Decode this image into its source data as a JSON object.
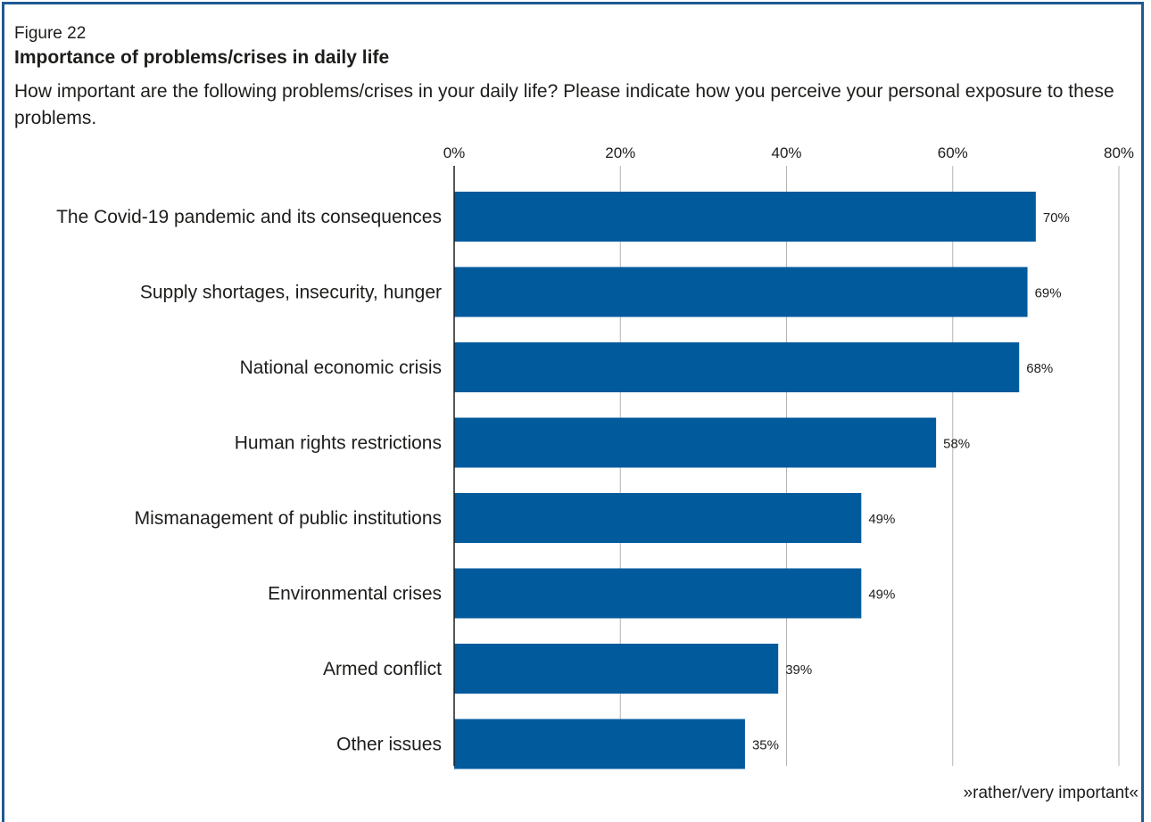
{
  "figure_label": "Figure 22",
  "footnote": "»rather/very important«",
  "chart_data": {
    "type": "bar",
    "orientation": "horizontal",
    "title": "Importance of problems/crises in daily life",
    "subtitle": "How important are the following problems/crises in your daily life? Please indicate how you perceive your personal exposure to these problems.",
    "categories": [
      "The Covid-19 pandemic and its consequences",
      "Supply shortages, insecurity, hunger",
      "National economic crisis",
      "Human rights restrictions",
      "Mismanagement of public institutions",
      "Environmental crises",
      "Armed conflict",
      "Other issues"
    ],
    "values": [
      70,
      69,
      68,
      58,
      49,
      49,
      39,
      35
    ],
    "value_labels": [
      "70%",
      "69%",
      "68%",
      "58%",
      "49%",
      "49%",
      "39%",
      "35%"
    ],
    "xlim": [
      0,
      80
    ],
    "xticks": [
      0,
      20,
      40,
      60,
      80
    ],
    "xtick_labels": [
      "0%",
      "20%",
      "40%",
      "60%",
      "80%"
    ],
    "xaxis_position": "top",
    "grid": true,
    "bar_color": "#005a9c",
    "grid_color": "#b3b3b3",
    "axis_color": "#1d1d1b"
  }
}
